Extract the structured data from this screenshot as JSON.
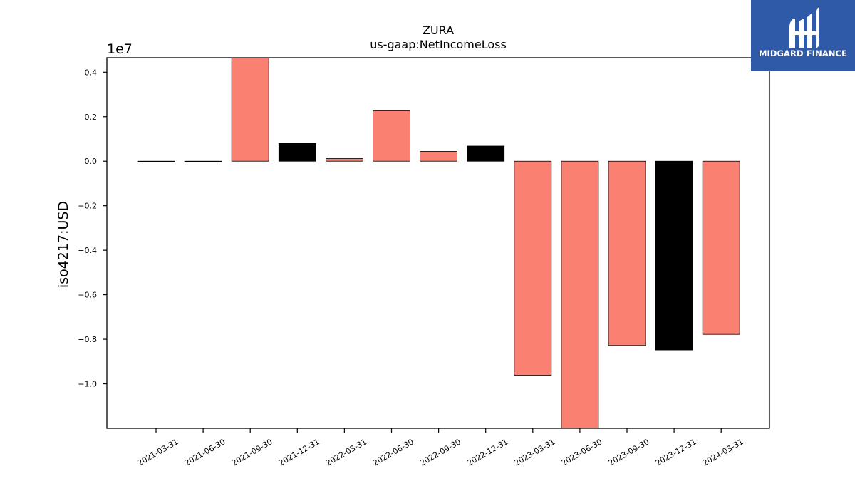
{
  "logo": {
    "text": "MIDGARD FINANCE",
    "background": "#2f5aa8"
  },
  "chart_data": {
    "type": "bar",
    "title": "ZURA",
    "subtitle": "us-gaap:NetIncomeLoss",
    "xlabel": "",
    "ylabel": "iso4217:USD",
    "y_offset_label": "1e7",
    "y_scale": 10000000,
    "ylim": [
      -12000000,
      4650000
    ],
    "yticks": [
      -10000000,
      -8000000,
      -6000000,
      -4000000,
      -2000000,
      0,
      2000000,
      4000000
    ],
    "ytick_labels": [
      "−1.0",
      "−0.8",
      "−0.6",
      "−0.4",
      "−0.2",
      "0.0",
      "0.2",
      "0.4"
    ],
    "categories": [
      "2021-03-31",
      "2021-06-30",
      "2021-09-30",
      "2021-12-31",
      "2022-03-31",
      "2022-06-30",
      "2022-09-30",
      "2022-12-31",
      "2023-03-31",
      "2023-06-30",
      "2023-09-30",
      "2023-12-31",
      "2024-03-31"
    ],
    "values": [
      -30000,
      -30000,
      4650000,
      800000,
      120000,
      2270000,
      440000,
      680000,
      -9620000,
      -12000000,
      -8280000,
      -8480000,
      -7780000
    ],
    "bar_colors": [
      "#000000",
      "#000000",
      "#fa8072",
      "#000000",
      "#fa8072",
      "#fa8072",
      "#fa8072",
      "#000000",
      "#fa8072",
      "#fa8072",
      "#fa8072",
      "#000000",
      "#fa8072"
    ],
    "grid": false,
    "legend": "none"
  }
}
